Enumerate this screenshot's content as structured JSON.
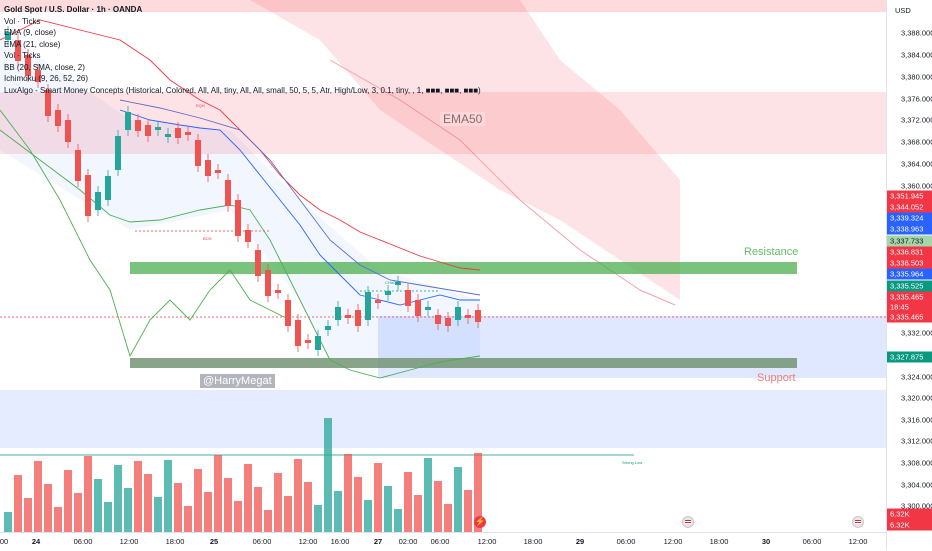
{
  "legend": {
    "title": "Gold Spot / U.S. Dollar · 1h · OANDA",
    "lines": [
      "Vol · Ticks",
      "EMA (9, close)",
      "EMA (21, close)",
      "Vol · Ticks",
      "BB (20, SMA, close, 2)",
      "Ichimoku (9, 26, 52, 26)",
      "LuxAlgo - Smart Money Concepts (Historical, Colored, All, All, tiny, All, All, small, 50, 5, 5, Atr, High/Low, 3, 0.1, tiny, , 1, ■■■, ■■■, ■■■)"
    ]
  },
  "price_axis": {
    "currency": "USD",
    "ticks": [
      "3,388.000",
      "3,384.000",
      "3,380.000",
      "3,376.000",
      "3,372.000",
      "3,368.000",
      "3,364.000",
      "3,360.000",
      "3,356.000",
      "3,332.000",
      "3,328.000",
      "3,324.000",
      "3,320.000",
      "3,316.000",
      "3,312.000",
      "3,308.000",
      "3,304.000",
      "3,300.000"
    ],
    "badges": [
      {
        "text": "3,351.945",
        "color": "#f23645"
      },
      {
        "text": "3,344.052",
        "color": "#f23645"
      },
      {
        "text": "3,339.324",
        "color": "#2962ff"
      },
      {
        "text": "3,338.963",
        "color": "#2962ff"
      },
      {
        "text": "3,337.733",
        "color": "#a5d6a7"
      },
      {
        "text": "3,336.831",
        "color": "#f23645"
      },
      {
        "text": "3,336.503",
        "color": "#f23645"
      },
      {
        "text": "3,335.964",
        "color": "#2962ff"
      },
      {
        "text": "3,335.525",
        "color": "#089981"
      },
      {
        "text": "3,335.465",
        "color": "#f23645"
      },
      {
        "text": "18:45",
        "color": "#f23645"
      },
      {
        "text": "3,335.465",
        "color": "#f23645"
      },
      {
        "text": "3,327.875",
        "color": "#089981"
      },
      {
        "text": "6.32K",
        "color": "#f23645"
      },
      {
        "text": "6.32K",
        "color": "#f23645"
      }
    ]
  },
  "time_axis": {
    "labels": [
      {
        "text": "00",
        "bold": false
      },
      {
        "text": "24",
        "bold": true
      },
      {
        "text": "06:00",
        "bold": false
      },
      {
        "text": "12:00",
        "bold": false
      },
      {
        "text": "18:00",
        "bold": false
      },
      {
        "text": "25",
        "bold": true
      },
      {
        "text": "06:00",
        "bold": false
      },
      {
        "text": "12:00",
        "bold": false
      },
      {
        "text": "16:00",
        "bold": false
      },
      {
        "text": "27",
        "bold": true
      },
      {
        "text": "02:00",
        "bold": false
      },
      {
        "text": "06:00",
        "bold": false
      },
      {
        "text": "12:00",
        "bold": false
      },
      {
        "text": "18:00",
        "bold": false
      },
      {
        "text": "29",
        "bold": true
      },
      {
        "text": "06:00",
        "bold": false
      },
      {
        "text": "12:00",
        "bold": false
      },
      {
        "text": "18:00",
        "bold": false
      },
      {
        "text": "30",
        "bold": true
      },
      {
        "text": "06:00",
        "bold": false
      },
      {
        "text": "12:00",
        "bold": false
      }
    ]
  },
  "annotations": {
    "resistance": "Resistance",
    "support": "Support",
    "ema50": "EMA50",
    "watermark": "@HarryMegat",
    "strong_low": "Strong Low",
    "bos": "BOS",
    "eqh": "EQH",
    "choch": "CHoCH"
  },
  "colors": {
    "up": "#26a69a",
    "down": "#ef5350",
    "resistance": "#4caf50",
    "support_zone": "#2962ff",
    "cloud": "#f23645",
    "bb": "#4caf50"
  },
  "icons": [
    "us-flag-icon",
    "lightning-icon"
  ]
}
